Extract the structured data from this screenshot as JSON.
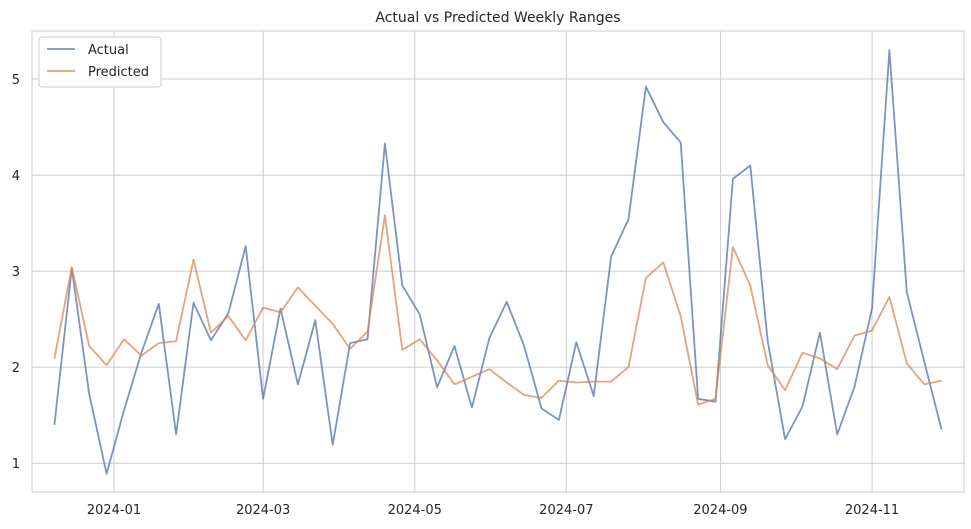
{
  "chart_data": {
    "type": "line",
    "title": "Actual vs Predicted Weekly Ranges",
    "xlabel": "",
    "ylabel": "",
    "x_ticks": [
      "2024-01",
      "2024-03",
      "2024-05",
      "2024-07",
      "2024-09",
      "2024-11"
    ],
    "y_ticks": [
      "1",
      "2",
      "3",
      "4",
      "5"
    ],
    "ylim": [
      0.7,
      5.5
    ],
    "grid": true,
    "legend_position": "top-left",
    "x": [
      "2023-12-08",
      "2023-12-15",
      "2023-12-22",
      "2023-12-29",
      "2024-01-05",
      "2024-01-12",
      "2024-01-19",
      "2024-01-26",
      "2024-02-02",
      "2024-02-09",
      "2024-02-16",
      "2024-02-23",
      "2024-03-01",
      "2024-03-08",
      "2024-03-15",
      "2024-03-22",
      "2024-03-29",
      "2024-04-05",
      "2024-04-12",
      "2024-04-19",
      "2024-04-26",
      "2024-05-03",
      "2024-05-10",
      "2024-05-17",
      "2024-05-24",
      "2024-05-31",
      "2024-06-07",
      "2024-06-14",
      "2024-06-21",
      "2024-06-28",
      "2024-07-05",
      "2024-07-12",
      "2024-07-19",
      "2024-07-26",
      "2024-08-02",
      "2024-08-09",
      "2024-08-16",
      "2024-08-23",
      "2024-08-30",
      "2024-09-06",
      "2024-09-13",
      "2024-09-20",
      "2024-09-27",
      "2024-10-04",
      "2024-10-11",
      "2024-10-18",
      "2024-10-25",
      "2024-11-01",
      "2024-11-08",
      "2024-11-15",
      "2024-11-22",
      "2024-11-29"
    ],
    "series": [
      {
        "name": "Actual",
        "color": "#4c72b0",
        "values": [
          1.4,
          3.03,
          1.72,
          0.89,
          1.55,
          2.15,
          2.66,
          1.3,
          2.67,
          2.28,
          2.56,
          3.26,
          1.67,
          2.61,
          1.82,
          2.49,
          1.19,
          2.25,
          2.29,
          4.33,
          2.85,
          2.55,
          1.79,
          2.22,
          1.58,
          2.3,
          2.68,
          2.22,
          1.57,
          1.45,
          2.26,
          1.7,
          3.15,
          3.54,
          4.92,
          4.55,
          4.34,
          1.67,
          1.64,
          3.96,
          4.1,
          2.27,
          1.25,
          1.59,
          2.36,
          1.3,
          1.8,
          2.61,
          5.3,
          2.78,
          2.06,
          1.35
        ]
      },
      {
        "name": "Predicted",
        "color": "#dd8452",
        "values": [
          2.09,
          3.04,
          2.22,
          2.02,
          2.29,
          2.12,
          2.25,
          2.27,
          3.12,
          2.36,
          2.53,
          2.28,
          2.62,
          2.57,
          2.83,
          2.64,
          2.45,
          2.19,
          2.37,
          3.58,
          2.18,
          2.29,
          2.07,
          1.82,
          1.9,
          1.98,
          1.84,
          1.71,
          1.68,
          1.86,
          1.84,
          1.85,
          1.85,
          2.0,
          2.93,
          3.09,
          2.53,
          1.61,
          1.67,
          3.25,
          2.85,
          2.02,
          1.76,
          2.15,
          2.09,
          1.98,
          2.33,
          2.38,
          2.73,
          2.04,
          1.82,
          1.86
        ]
      }
    ]
  }
}
